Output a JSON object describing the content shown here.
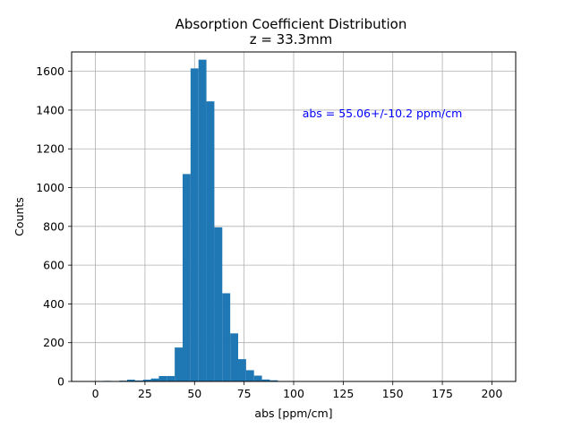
{
  "chart_data": {
    "type": "bar",
    "title": "Absorption Coefficient Distribution",
    "subtitle": "z = 33.3mm",
    "xlabel": "abs [ppm/cm]",
    "ylabel": "Counts",
    "xlim": [
      -12,
      212
    ],
    "ylim": [
      0,
      1700
    ],
    "xticks": [
      0,
      25,
      50,
      75,
      100,
      125,
      150,
      175,
      200
    ],
    "yticks": [
      0,
      200,
      400,
      600,
      800,
      1000,
      1200,
      1400,
      1600
    ],
    "grid": true,
    "bin_width": 4,
    "bins": [
      {
        "x0": 0,
        "count": 0
      },
      {
        "x0": 4,
        "count": 3
      },
      {
        "x0": 8,
        "count": 1
      },
      {
        "x0": 12,
        "count": 4
      },
      {
        "x0": 16,
        "count": 9
      },
      {
        "x0": 20,
        "count": 5
      },
      {
        "x0": 24,
        "count": 9
      },
      {
        "x0": 28,
        "count": 15
      },
      {
        "x0": 32,
        "count": 28
      },
      {
        "x0": 36,
        "count": 28
      },
      {
        "x0": 40,
        "count": 175
      },
      {
        "x0": 44,
        "count": 1070
      },
      {
        "x0": 48,
        "count": 1615
      },
      {
        "x0": 52,
        "count": 1660
      },
      {
        "x0": 56,
        "count": 1445
      },
      {
        "x0": 60,
        "count": 795
      },
      {
        "x0": 64,
        "count": 455
      },
      {
        "x0": 68,
        "count": 248
      },
      {
        "x0": 72,
        "count": 115
      },
      {
        "x0": 76,
        "count": 58
      },
      {
        "x0": 80,
        "count": 30
      },
      {
        "x0": 84,
        "count": 10
      },
      {
        "x0": 88,
        "count": 6
      },
      {
        "x0": 92,
        "count": 2
      }
    ],
    "bar_color": "#1f77b4",
    "annotation": "abs = 55.06+/-10.2 ppm/cm",
    "annotation_color": "#0000ff"
  }
}
